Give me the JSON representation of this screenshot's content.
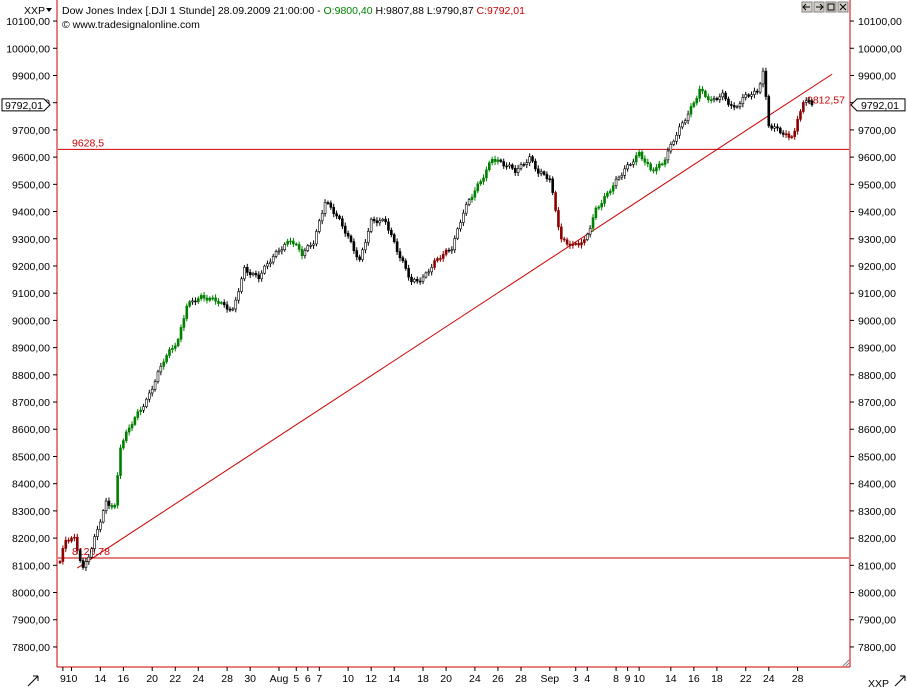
{
  "header": {
    "symbol_menu": "XXP",
    "instrument": "Dow Jones Index [.DJI  1 Stunde] 28.09.2009 21:00:00 - ",
    "open_label": "O:9800,40",
    "high_label": "H:9807,88",
    "low_label": "L:9790,87",
    "close_label": "C:9792,01",
    "copyright": "© www.tradesignalonline.com",
    "corner_label": "XXP"
  },
  "icons": {
    "window_buttons": [
      "arrow-left-icon",
      "arrow-right-icon",
      "maximize-icon",
      "close-icon"
    ]
  },
  "colors": {
    "up_candle": "#008000",
    "down_candle": "#8b0000",
    "bar": "#000000",
    "lines": "#cc0000",
    "border": "#cc0000"
  },
  "chart_data": {
    "type": "candlestick",
    "title": "Dow Jones Index [.DJI  1 Stunde]",
    "y_ticks": [
      "10100,00",
      "10000,00",
      "9900,00",
      "9800,00",
      "9700,00",
      "9600,00",
      "9500,00",
      "9400,00",
      "9300,00",
      "9200,00",
      "9100,00",
      "9000,00",
      "8900,00",
      "8800,00",
      "8700,00",
      "8600,00",
      "8500,00",
      "8400,00",
      "8300,00",
      "8200,00",
      "8100,00",
      "8000,00",
      "7900,00",
      "7800,00"
    ],
    "ylim": [
      7730,
      10170
    ],
    "x_ticks": [
      "9",
      "10",
      "14",
      "16",
      "20",
      "22",
      "24",
      "28",
      "30",
      "Aug",
      "5",
      "6",
      "7",
      "10",
      "12",
      "14",
      "18",
      "20",
      "24",
      "26",
      "28",
      "Sep",
      "3",
      "4",
      "8",
      "9",
      "10",
      "14",
      "16",
      "18",
      "22",
      "24",
      "28"
    ],
    "x_tick_index": [
      1,
      4,
      14,
      22,
      32,
      40,
      48,
      58,
      66,
      76,
      82,
      86,
      90,
      100,
      108,
      116,
      126,
      134,
      144,
      152,
      160,
      170,
      179,
      183,
      193,
      197,
      201,
      212,
      220,
      228,
      238,
      246,
      256
    ],
    "n_bars": 262,
    "anchors": [
      [
        0,
        8110
      ],
      [
        2,
        8190
      ],
      [
        5,
        8200
      ],
      [
        8,
        8090
      ],
      [
        11,
        8160
      ],
      [
        16,
        8330
      ],
      [
        19,
        8320
      ],
      [
        21,
        8540
      ],
      [
        25,
        8620
      ],
      [
        30,
        8710
      ],
      [
        36,
        8850
      ],
      [
        41,
        8930
      ],
      [
        44,
        9060
      ],
      [
        49,
        9080
      ],
      [
        54,
        9080
      ],
      [
        60,
        9030
      ],
      [
        64,
        9190
      ],
      [
        69,
        9160
      ],
      [
        76,
        9260
      ],
      [
        80,
        9300
      ],
      [
        84,
        9240
      ],
      [
        88,
        9290
      ],
      [
        92,
        9440
      ],
      [
        96,
        9380
      ],
      [
        100,
        9310
      ],
      [
        104,
        9220
      ],
      [
        108,
        9360
      ],
      [
        113,
        9370
      ],
      [
        118,
        9230
      ],
      [
        122,
        9140
      ],
      [
        126,
        9160
      ],
      [
        130,
        9210
      ],
      [
        136,
        9270
      ],
      [
        140,
        9400
      ],
      [
        146,
        9510
      ],
      [
        150,
        9600
      ],
      [
        154,
        9570
      ],
      [
        158,
        9550
      ],
      [
        163,
        9600
      ],
      [
        166,
        9540
      ],
      [
        170,
        9520
      ],
      [
        174,
        9300
      ],
      [
        178,
        9270
      ],
      [
        182,
        9290
      ],
      [
        186,
        9410
      ],
      [
        190,
        9460
      ],
      [
        196,
        9560
      ],
      [
        201,
        9610
      ],
      [
        205,
        9550
      ],
      [
        209,
        9580
      ],
      [
        214,
        9680
      ],
      [
        218,
        9760
      ],
      [
        222,
        9850
      ],
      [
        226,
        9800
      ],
      [
        230,
        9830
      ],
      [
        234,
        9780
      ],
      [
        238,
        9820
      ],
      [
        242,
        9840
      ],
      [
        244,
        9920
      ],
      [
        246,
        9720
      ],
      [
        250,
        9690
      ],
      [
        253,
        9670
      ],
      [
        255,
        9700
      ],
      [
        258,
        9810
      ],
      [
        261,
        9792.01
      ]
    ],
    "green_ranges": [
      [
        18,
        28
      ],
      [
        36,
        45
      ],
      [
        48,
        56
      ],
      [
        79,
        84
      ],
      [
        143,
        152
      ],
      [
        185,
        192
      ],
      [
        200,
        210
      ],
      [
        219,
        226
      ]
    ],
    "red_ranges": [
      [
        0,
        6
      ],
      [
        130,
        134
      ],
      [
        172,
        182
      ],
      [
        252,
        258
      ]
    ],
    "levels": [
      {
        "value": 9628.5,
        "label": "9628,5"
      },
      {
        "value": 8126.78,
        "label": "8126,78"
      }
    ],
    "trendline": {
      "from": [
        6,
        8090
      ],
      "to": [
        268,
        9905
      ],
      "label": "9812,57"
    },
    "last_price_label": "9792,01",
    "last_price": 9792.01,
    "trend_label_value": 9812.57,
    "grid": false
  }
}
